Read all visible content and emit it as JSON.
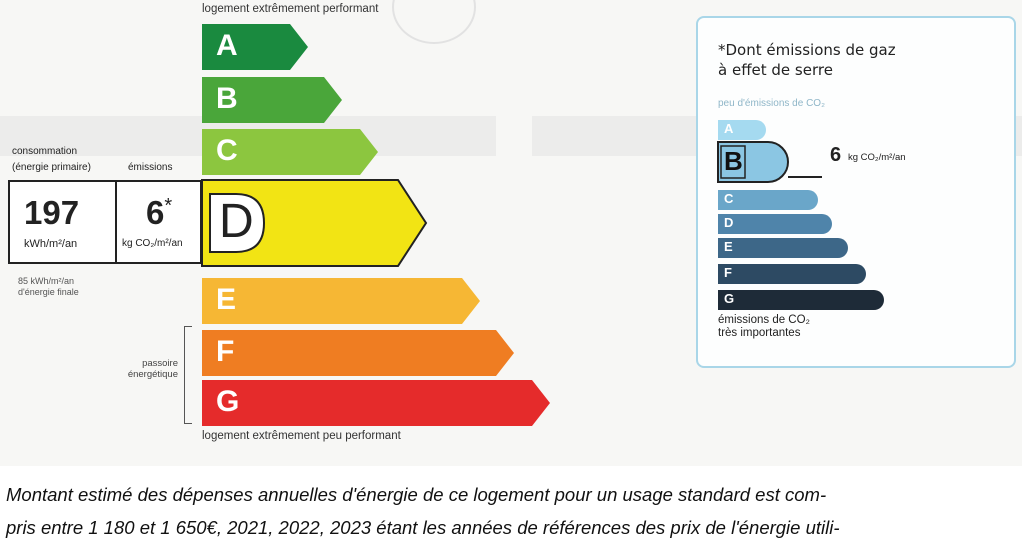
{
  "energy_label": {
    "top_caption": "logement extrêmement performant",
    "bottom_caption": "logement extrêmement peu performant",
    "consumption_label_line1": "consommation",
    "consumption_label_line2": "(énergie primaire)",
    "emissions_label": "émissions",
    "consumption_value": "197",
    "consumption_unit": "kWh/m²/an",
    "emission_value": "6",
    "emission_star": "*",
    "emission_unit": "kg CO₂/m²/an",
    "final_energy_line1": "85 kWh/m²/an",
    "final_energy_line2": "d'énergie finale",
    "passoire_line1": "passoire",
    "passoire_line2": "énergétique",
    "current_class": "D",
    "classes": [
      {
        "letter": "A",
        "color": "#1a8a3f"
      },
      {
        "letter": "B",
        "color": "#4aa63a"
      },
      {
        "letter": "C",
        "color": "#8cc63f"
      },
      {
        "letter": "D",
        "color": "#f2e414"
      },
      {
        "letter": "E",
        "color": "#f6b734"
      },
      {
        "letter": "F",
        "color": "#ef7d22"
      },
      {
        "letter": "G",
        "color": "#e52b2b"
      }
    ]
  },
  "ghg_label": {
    "note_line1": "*Dont émissions de gaz",
    "note_line2": "à effet de serre",
    "low_caption": "peu d'émissions de CO₂",
    "high_caption_line1": "émissions de CO₂",
    "high_caption_line2": "très importantes",
    "current_class": "B",
    "value": "6",
    "unit": "kg CO₂/m²/an",
    "classes": [
      {
        "letter": "A",
        "color": "#a5daf0"
      },
      {
        "letter": "B",
        "color": "#8bc6e3"
      },
      {
        "letter": "C",
        "color": "#6aa6c9"
      },
      {
        "letter": "D",
        "color": "#4f84aa"
      },
      {
        "letter": "E",
        "color": "#3d6788"
      },
      {
        "letter": "F",
        "color": "#2d4a63"
      },
      {
        "letter": "G",
        "color": "#1e2b38"
      }
    ]
  },
  "caption": {
    "line1": "Montant estimé des dépenses annuelles d'énergie de ce logement pour un usage standard est com-",
    "line2": "pris entre 1 180 et 1 650€, 2021, 2022, 2023 étant les années de références des prix de l'énergie utili-"
  }
}
